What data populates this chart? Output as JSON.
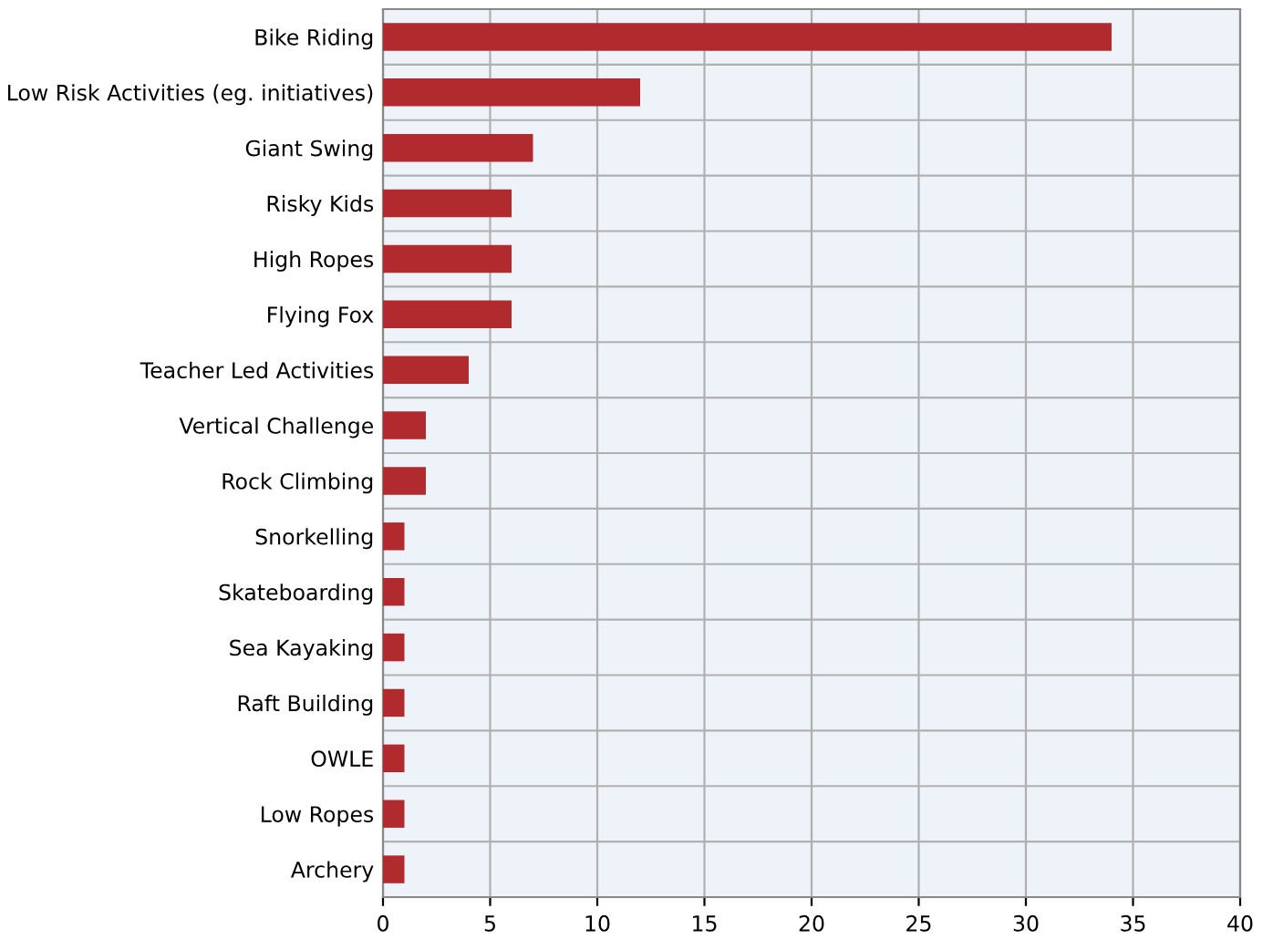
{
  "chart_data": {
    "type": "bar",
    "orientation": "horizontal",
    "categories": [
      "Bike Riding",
      "Low Risk Activities (eg. initiatives)",
      "Giant Swing",
      "Risky Kids",
      "High Ropes",
      "Flying Fox",
      "Teacher Led Activities",
      "Vertical Challenge",
      "Rock Climbing",
      "Snorkelling",
      "Skateboarding",
      "Sea Kayaking",
      "Raft Building",
      "OWLE",
      "Low Ropes",
      "Archery"
    ],
    "values": [
      34,
      12,
      7,
      6,
      6,
      6,
      4,
      2,
      2,
      1,
      1,
      1,
      1,
      1,
      1,
      1
    ],
    "color": "#b02a2e",
    "xlim": [
      0,
      40
    ],
    "xticks": [
      0,
      5,
      10,
      15,
      20,
      25,
      30,
      35,
      40
    ],
    "grid": true
  }
}
